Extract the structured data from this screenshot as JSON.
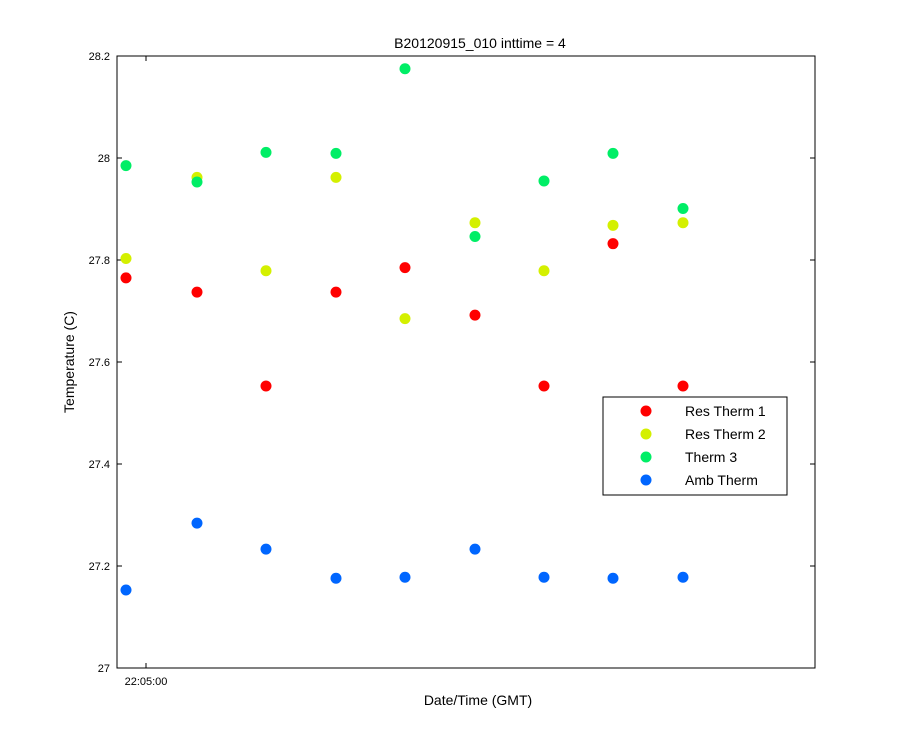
{
  "chart_data": {
    "type": "scatter",
    "title": "B20120915_010 inttime = 4",
    "xlabel": "Date/Time (GMT)",
    "ylabel": "Temperature (C)",
    "ylim": [
      27,
      28.2
    ],
    "yticks": [
      "27",
      "27.2",
      "27.4",
      "27.6",
      "27.8",
      "28",
      "28.2"
    ],
    "xtick_labels": [
      "22:05:00"
    ],
    "grid": false,
    "legend_position": "right",
    "x": [
      1,
      2,
      3,
      4,
      5,
      6,
      7,
      8,
      9
    ],
    "series": [
      {
        "name": "Res Therm 1",
        "color": "#ff0000",
        "values": [
          27.765,
          27.737,
          27.553,
          27.737,
          27.785,
          27.692,
          27.553,
          27.832,
          27.553
        ]
      },
      {
        "name": "Res Therm 2",
        "color": "#d4f000",
        "values": [
          27.803,
          27.962,
          27.779,
          27.962,
          27.685,
          27.873,
          27.779,
          27.868,
          27.873
        ]
      },
      {
        "name": "Therm 3",
        "color": "#00ee66",
        "values": [
          27.985,
          27.953,
          28.011,
          28.009,
          28.175,
          27.846,
          27.955,
          28.009,
          27.901
        ]
      },
      {
        "name": "Amb Therm",
        "color": "#0066ff",
        "values": [
          27.153,
          27.284,
          27.233,
          27.176,
          27.178,
          27.233,
          27.178,
          27.176,
          27.178
        ]
      }
    ]
  }
}
